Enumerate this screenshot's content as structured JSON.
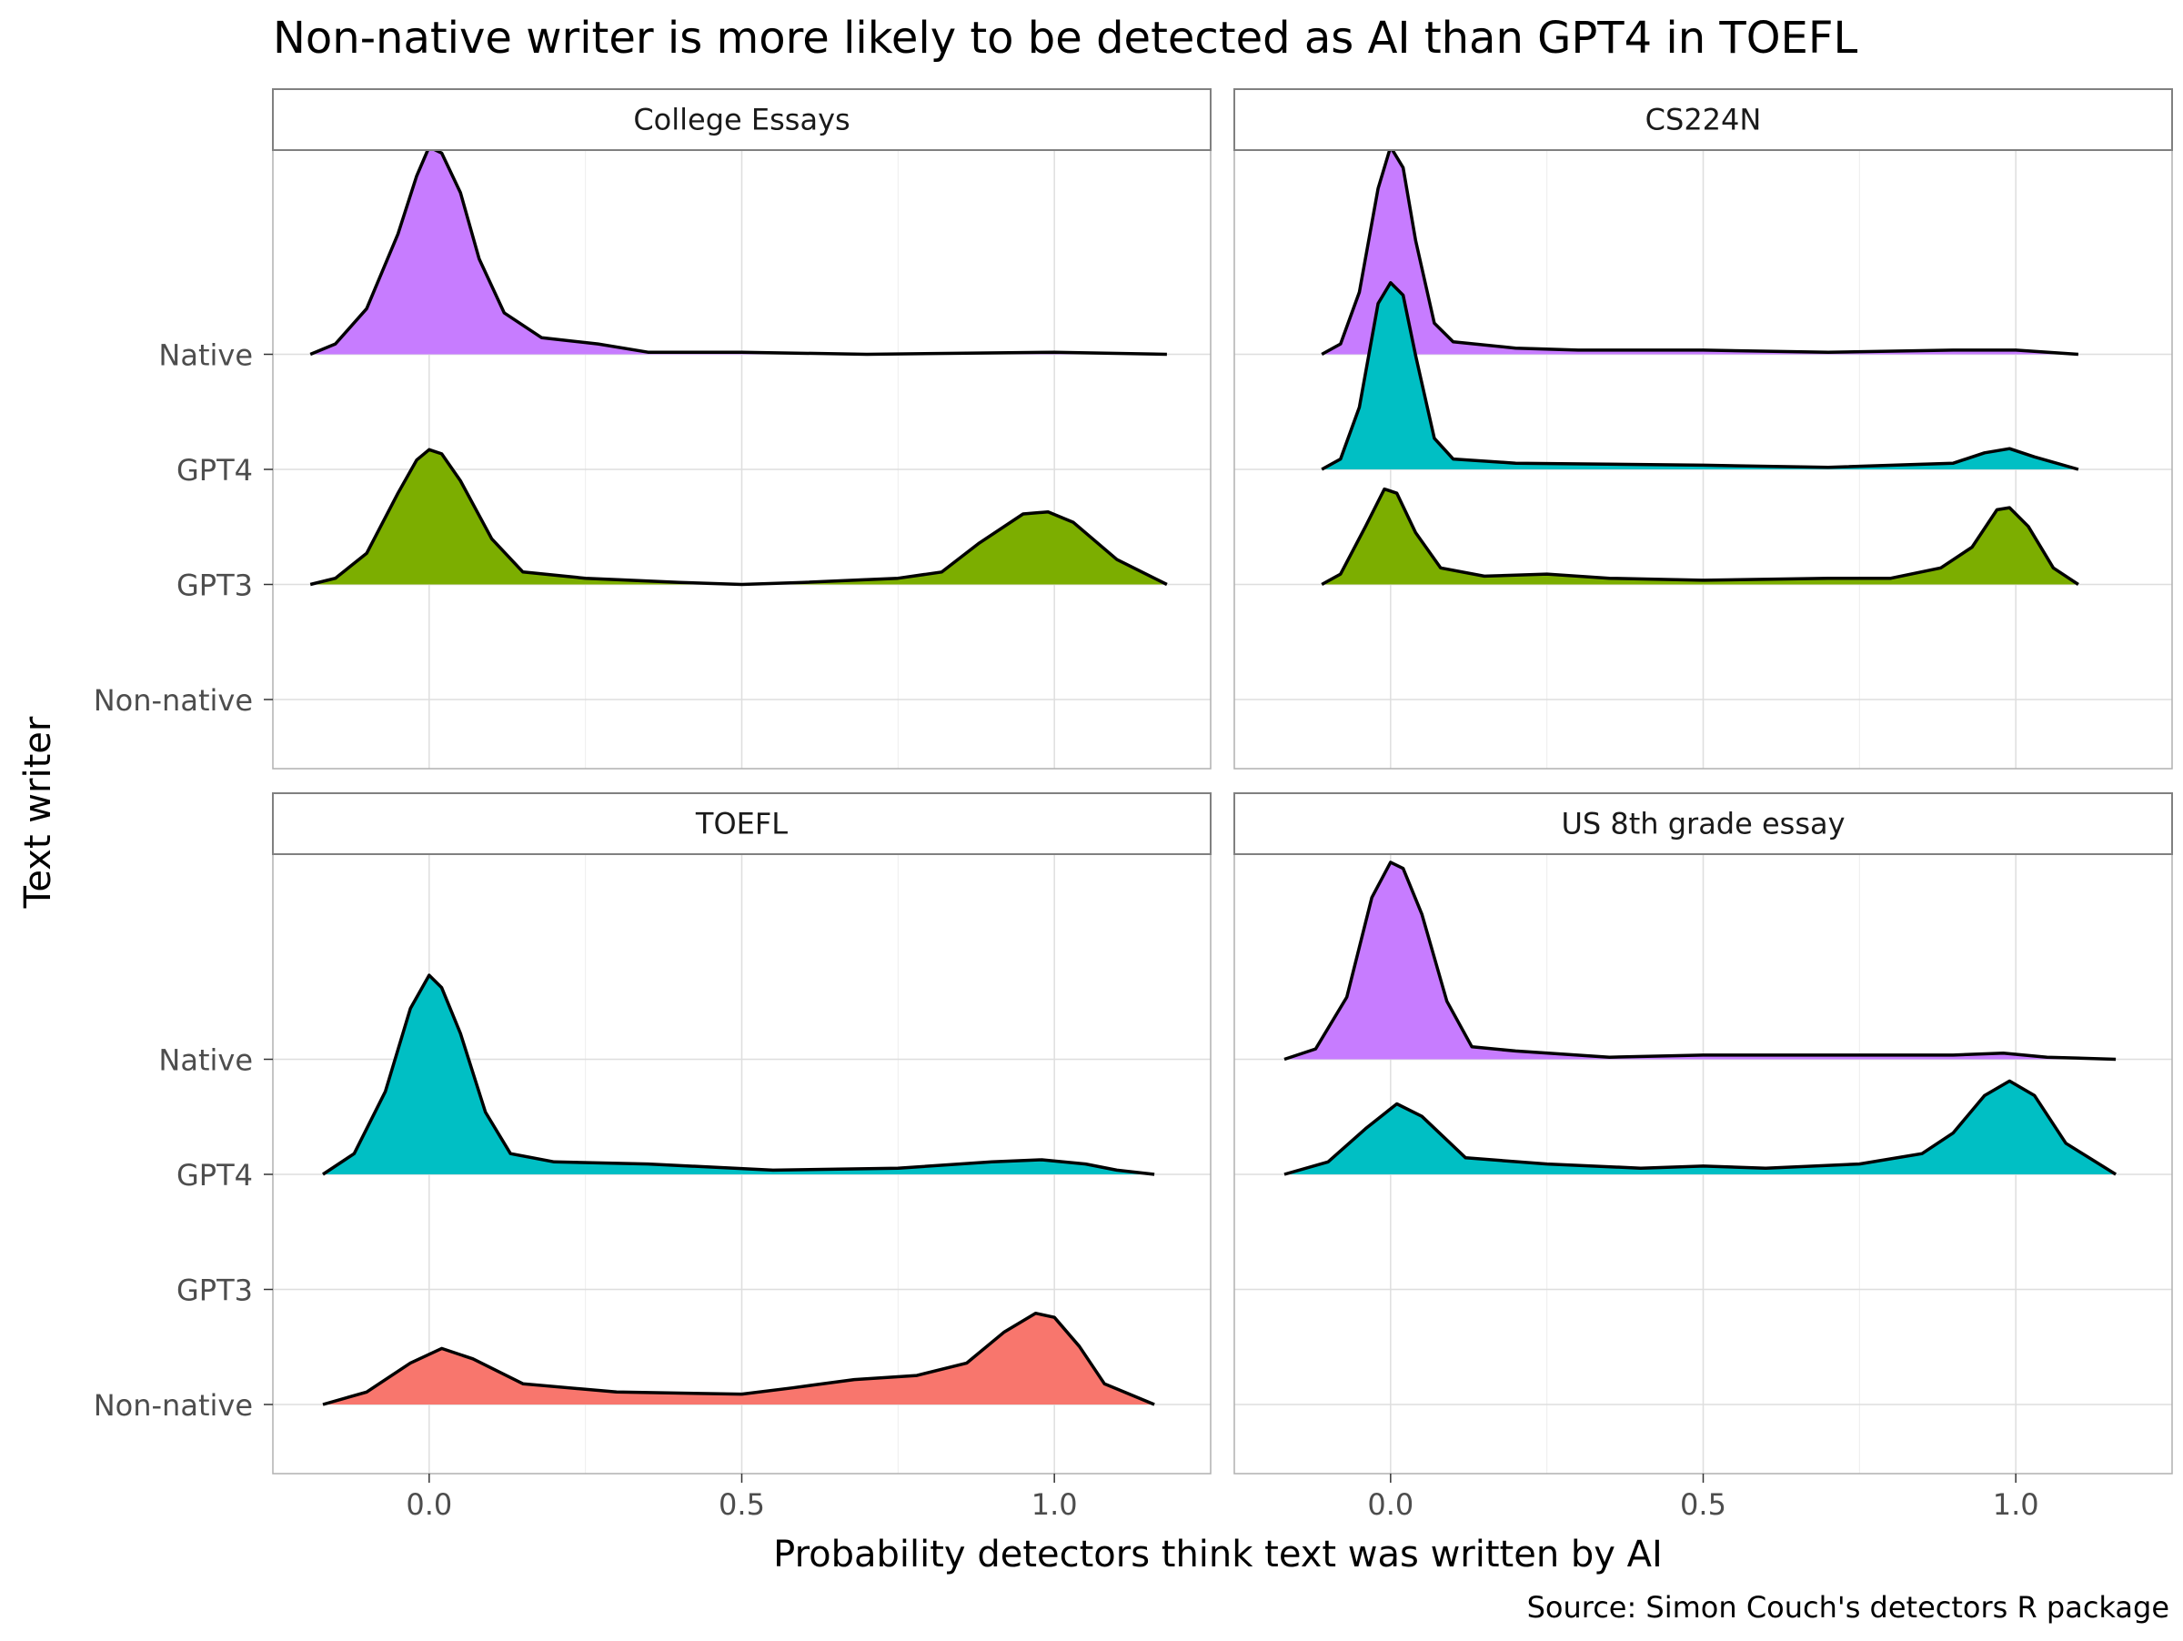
{
  "chart_data": {
    "type": "area",
    "subtype": "ridgeline-density",
    "title": "Non-native writer is more likely to be detected as AI than GPT4 in TOEFL",
    "xlabel": "Probability detectors think text was written by AI",
    "ylabel": "Text writer",
    "caption": "Source: Simon Couch's detectors R package",
    "xlim": [
      -0.25,
      1.25
    ],
    "x_ticks": [
      0.0,
      0.5,
      1.0
    ],
    "x_tick_labels": [
      "0.0",
      "0.5",
      "1.0"
    ],
    "y_categories": [
      "Non-native",
      "GPT3",
      "GPT4",
      "Native"
    ],
    "grid": true,
    "legend": "none",
    "colors": {
      "Native": "#C77CFF",
      "GPT4": "#00BFC4",
      "GPT3": "#7CAE00",
      "Non-native": "#F8766D"
    },
    "facets": [
      {
        "name": "College Essays",
        "series": [
          {
            "name": "Native",
            "points": [
              [
                -0.19,
                0.0
              ],
              [
                -0.15,
                0.05
              ],
              [
                -0.1,
                0.22
              ],
              [
                -0.05,
                0.58
              ],
              [
                -0.02,
                0.86
              ],
              [
                0.0,
                1.0
              ],
              [
                0.02,
                0.97
              ],
              [
                0.05,
                0.78
              ],
              [
                0.08,
                0.46
              ],
              [
                0.12,
                0.2
              ],
              [
                0.18,
                0.08
              ],
              [
                0.27,
                0.05
              ],
              [
                0.35,
                0.01
              ],
              [
                0.5,
                0.01
              ],
              [
                0.7,
                0.0
              ],
              [
                1.0,
                0.01
              ],
              [
                1.18,
                0.0
              ]
            ]
          },
          {
            "name": "GPT3",
            "points": [
              [
                -0.19,
                0.0
              ],
              [
                -0.15,
                0.03
              ],
              [
                -0.1,
                0.15
              ],
              [
                -0.05,
                0.44
              ],
              [
                -0.02,
                0.6
              ],
              [
                0.0,
                0.65
              ],
              [
                0.02,
                0.63
              ],
              [
                0.05,
                0.5
              ],
              [
                0.1,
                0.22
              ],
              [
                0.15,
                0.06
              ],
              [
                0.25,
                0.03
              ],
              [
                0.4,
                0.01
              ],
              [
                0.5,
                0.0
              ],
              [
                0.6,
                0.01
              ],
              [
                0.75,
                0.03
              ],
              [
                0.82,
                0.06
              ],
              [
                0.88,
                0.2
              ],
              [
                0.95,
                0.34
              ],
              [
                0.99,
                0.35
              ],
              [
                1.03,
                0.3
              ],
              [
                1.1,
                0.12
              ],
              [
                1.18,
                0.0
              ]
            ]
          },
          {
            "name": "Non-native",
            "points": [
              [
                -0.19,
                0.0
              ],
              [
                1.18,
                0.0
              ]
            ]
          }
        ]
      },
      {
        "name": "CS224N",
        "series": [
          {
            "name": "Native",
            "points": [
              [
                -0.11,
                0.0
              ],
              [
                -0.08,
                0.05
              ],
              [
                -0.05,
                0.3
              ],
              [
                -0.02,
                0.8
              ],
              [
                0.0,
                1.0
              ],
              [
                0.02,
                0.9
              ],
              [
                0.04,
                0.55
              ],
              [
                0.07,
                0.15
              ],
              [
                0.1,
                0.06
              ],
              [
                0.2,
                0.03
              ],
              [
                0.3,
                0.02
              ],
              [
                0.5,
                0.02
              ],
              [
                0.7,
                0.01
              ],
              [
                0.9,
                0.02
              ],
              [
                1.0,
                0.02
              ],
              [
                1.1,
                0.0
              ]
            ]
          },
          {
            "name": "GPT4",
            "points": [
              [
                -0.11,
                0.0
              ],
              [
                -0.08,
                0.05
              ],
              [
                -0.05,
                0.3
              ],
              [
                -0.02,
                0.8
              ],
              [
                0.0,
                0.9
              ],
              [
                0.02,
                0.84
              ],
              [
                0.04,
                0.55
              ],
              [
                0.07,
                0.15
              ],
              [
                0.1,
                0.05
              ],
              [
                0.2,
                0.03
              ],
              [
                0.5,
                0.02
              ],
              [
                0.7,
                0.01
              ],
              [
                0.9,
                0.03
              ],
              [
                0.95,
                0.08
              ],
              [
                0.99,
                0.1
              ],
              [
                1.03,
                0.06
              ],
              [
                1.1,
                0.0
              ]
            ]
          },
          {
            "name": "GPT3",
            "points": [
              [
                -0.11,
                0.0
              ],
              [
                -0.08,
                0.05
              ],
              [
                -0.04,
                0.28
              ],
              [
                -0.01,
                0.46
              ],
              [
                0.01,
                0.44
              ],
              [
                0.04,
                0.25
              ],
              [
                0.08,
                0.08
              ],
              [
                0.15,
                0.04
              ],
              [
                0.25,
                0.05
              ],
              [
                0.35,
                0.03
              ],
              [
                0.5,
                0.02
              ],
              [
                0.7,
                0.03
              ],
              [
                0.8,
                0.03
              ],
              [
                0.88,
                0.08
              ],
              [
                0.93,
                0.18
              ],
              [
                0.97,
                0.36
              ],
              [
                0.99,
                0.37
              ],
              [
                1.02,
                0.28
              ],
              [
                1.06,
                0.08
              ],
              [
                1.1,
                0.0
              ]
            ]
          },
          {
            "name": "Non-native",
            "points": [
              [
                -0.11,
                0.0
              ],
              [
                1.1,
                0.0
              ]
            ]
          }
        ]
      },
      {
        "name": "TOEFL",
        "series": [
          {
            "name": "GPT4",
            "points": [
              [
                -0.17,
                0.0
              ],
              [
                -0.12,
                0.1
              ],
              [
                -0.07,
                0.4
              ],
              [
                -0.03,
                0.8
              ],
              [
                0.0,
                0.96
              ],
              [
                0.02,
                0.9
              ],
              [
                0.05,
                0.68
              ],
              [
                0.09,
                0.3
              ],
              [
                0.13,
                0.1
              ],
              [
                0.2,
                0.06
              ],
              [
                0.35,
                0.05
              ],
              [
                0.55,
                0.02
              ],
              [
                0.75,
                0.03
              ],
              [
                0.9,
                0.06
              ],
              [
                0.98,
                0.07
              ],
              [
                1.05,
                0.05
              ],
              [
                1.1,
                0.02
              ],
              [
                1.16,
                0.0
              ]
            ]
          },
          {
            "name": "Non-native",
            "points": [
              [
                -0.17,
                0.0
              ],
              [
                -0.1,
                0.06
              ],
              [
                -0.03,
                0.2
              ],
              [
                0.02,
                0.27
              ],
              [
                0.07,
                0.22
              ],
              [
                0.15,
                0.1
              ],
              [
                0.3,
                0.06
              ],
              [
                0.5,
                0.05
              ],
              [
                0.58,
                0.08
              ],
              [
                0.68,
                0.12
              ],
              [
                0.78,
                0.14
              ],
              [
                0.86,
                0.2
              ],
              [
                0.92,
                0.35
              ],
              [
                0.97,
                0.44
              ],
              [
                1.0,
                0.42
              ],
              [
                1.04,
                0.28
              ],
              [
                1.08,
                0.1
              ],
              [
                1.16,
                0.0
              ]
            ]
          },
          {
            "name": "GPT3",
            "points": [
              [
                -0.17,
                0.0
              ],
              [
                1.16,
                0.0
              ]
            ]
          },
          {
            "name": "Native",
            "points": [
              [
                -0.17,
                0.0
              ],
              [
                1.16,
                0.0
              ]
            ]
          }
        ]
      },
      {
        "name": "US 8th grade essay",
        "series": [
          {
            "name": "Native",
            "points": [
              [
                -0.17,
                0.0
              ],
              [
                -0.12,
                0.05
              ],
              [
                -0.07,
                0.3
              ],
              [
                -0.03,
                0.78
              ],
              [
                0.0,
                0.95
              ],
              [
                0.02,
                0.92
              ],
              [
                0.05,
                0.7
              ],
              [
                0.09,
                0.28
              ],
              [
                0.13,
                0.06
              ],
              [
                0.2,
                0.04
              ],
              [
                0.35,
                0.01
              ],
              [
                0.5,
                0.02
              ],
              [
                0.7,
                0.02
              ],
              [
                0.9,
                0.02
              ],
              [
                0.98,
                0.03
              ],
              [
                1.05,
                0.01
              ],
              [
                1.16,
                0.0
              ]
            ]
          },
          {
            "name": "GPT4",
            "points": [
              [
                -0.17,
                0.0
              ],
              [
                -0.1,
                0.06
              ],
              [
                -0.04,
                0.22
              ],
              [
                0.01,
                0.34
              ],
              [
                0.05,
                0.28
              ],
              [
                0.12,
                0.08
              ],
              [
                0.25,
                0.05
              ],
              [
                0.4,
                0.03
              ],
              [
                0.5,
                0.04
              ],
              [
                0.6,
                0.03
              ],
              [
                0.75,
                0.05
              ],
              [
                0.85,
                0.1
              ],
              [
                0.9,
                0.2
              ],
              [
                0.95,
                0.38
              ],
              [
                0.99,
                0.45
              ],
              [
                1.03,
                0.38
              ],
              [
                1.08,
                0.15
              ],
              [
                1.16,
                0.0
              ]
            ]
          },
          {
            "name": "GPT3",
            "points": [
              [
                -0.17,
                0.0
              ],
              [
                1.16,
                0.0
              ]
            ]
          },
          {
            "name": "Non-native",
            "points": [
              [
                -0.17,
                0.0
              ],
              [
                1.16,
                0.0
              ]
            ]
          }
        ]
      }
    ]
  }
}
